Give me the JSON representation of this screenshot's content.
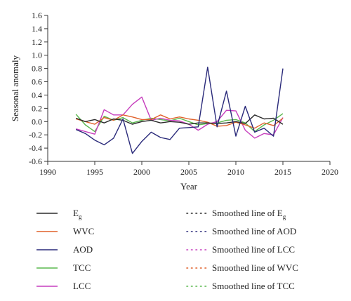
{
  "chart_data": {
    "type": "line",
    "xlabel": "Year",
    "ylabel": "Seasonal anomaly",
    "xlim": [
      1990,
      2020
    ],
    "ylim": [
      -0.6,
      1.6
    ],
    "xticks": [
      1990,
      1995,
      2000,
      2005,
      2010,
      2015,
      2020
    ],
    "yticks": [
      -0.6,
      -0.4,
      -0.2,
      0.0,
      0.2,
      0.4,
      0.6,
      0.8,
      1.0,
      1.2,
      1.4,
      1.6
    ],
    "ytick_labels": [
      "-0.6",
      "-0.4",
      "-0.2",
      "0.0",
      "0.2",
      "0.4",
      "0.6",
      "0.8",
      "1.0",
      "1.2",
      "1.4",
      "1.6"
    ],
    "grid": false,
    "legend_position": "bottom",
    "x": [
      1993,
      1994,
      1995,
      1996,
      1997,
      1998,
      1999,
      2000,
      2001,
      2002,
      2003,
      2004,
      2005,
      2006,
      2007,
      2008,
      2009,
      2010,
      2011,
      2012,
      2013,
      2014,
      2015
    ],
    "series": [
      {
        "name": "E",
        "name_sub": "g",
        "color": "#2b2b2b",
        "values": [
          0.05,
          0.0,
          0.03,
          -0.02,
          0.04,
          0.02,
          -0.04,
          0.0,
          0.02,
          -0.02,
          0.0,
          -0.01,
          -0.04,
          -0.02,
          -0.02,
          -0.03,
          -0.02,
          0.0,
          -0.03,
          0.1,
          0.04,
          0.05,
          -0.04
        ]
      },
      {
        "name": "WVC",
        "color": "#e0602a",
        "values": [
          0.04,
          0.0,
          -0.04,
          0.06,
          0.02,
          0.1,
          0.07,
          0.03,
          0.03,
          0.1,
          0.04,
          0.07,
          0.04,
          0.02,
          -0.01,
          -0.07,
          -0.06,
          -0.01,
          -0.05,
          -0.1,
          -0.02,
          -0.06,
          0.05
        ]
      },
      {
        "name": "AOD",
        "color": "#2a2a7a",
        "values": [
          -0.12,
          -0.18,
          -0.28,
          -0.35,
          -0.25,
          0.04,
          -0.48,
          -0.3,
          -0.16,
          -0.24,
          -0.27,
          -0.1,
          -0.09,
          -0.08,
          0.82,
          -0.08,
          0.46,
          -0.22,
          0.23,
          -0.16,
          -0.1,
          -0.22,
          0.8
        ]
      },
      {
        "name": "TCC",
        "color": "#5ab84e",
        "values": [
          0.11,
          -0.05,
          -0.15,
          0.08,
          0.02,
          0.06,
          -0.02,
          0.02,
          0.05,
          0.03,
          0.01,
          0.05,
          0.0,
          -0.05,
          -0.03,
          -0.02,
          0.02,
          0.03,
          -0.02,
          -0.15,
          -0.05,
          0.02,
          0.12
        ]
      },
      {
        "name": "LCC",
        "color": "#c63dbd",
        "values": [
          -0.11,
          -0.15,
          -0.19,
          0.18,
          0.1,
          0.1,
          0.26,
          0.37,
          0.02,
          0.05,
          0.02,
          0.01,
          -0.04,
          -0.13,
          -0.04,
          0.0,
          0.17,
          0.16,
          -0.13,
          -0.25,
          -0.18,
          -0.2,
          0.06
        ]
      }
    ],
    "smoothed_legend": [
      {
        "text": "Smoothed line of E",
        "sub": "g",
        "color": "#2b2b2b"
      },
      {
        "text": "Smoothed line of AOD",
        "sub": "",
        "color": "#2a2a7a"
      },
      {
        "text": "Smoothed line of LCC",
        "sub": "",
        "color": "#c63dbd"
      },
      {
        "text": "Smoothed line of WVC",
        "sub": "",
        "color": "#e0602a"
      },
      {
        "text": "Smoothed line of TCC",
        "sub": "",
        "color": "#5ab84e"
      }
    ]
  }
}
